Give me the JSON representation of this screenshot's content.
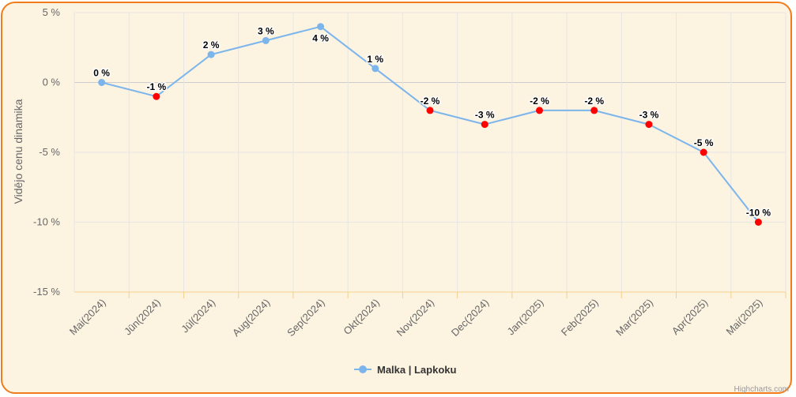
{
  "chart_data": {
    "type": "line",
    "ylabel": "Vidējo cenu dinamika",
    "categories": [
      "Mai(2024)",
      "Jūn(2024)",
      "Jūl(2024)",
      "Aug(2024)",
      "Sep(2024)",
      "Okt(2024)",
      "Nov(2024)",
      "Dec(2024)",
      "Jan(2025)",
      "Feb(2025)",
      "Mar(2025)",
      "Apr(2025)",
      "Mai(2025)"
    ],
    "series": [
      {
        "name": "Malka | Lapkoku",
        "color": "#7cb5ec",
        "values": [
          0,
          -1,
          2,
          3,
          4,
          1,
          -2,
          -3,
          -2,
          -2,
          -3,
          -5,
          -10
        ],
        "data_labels": [
          "0 %",
          "-1 %",
          "2 %",
          "3 %",
          "4 %",
          "1 %",
          "-2 %",
          "-3 %",
          "-2 %",
          "-2 %",
          "-3 %",
          "-5 %",
          "-10 %"
        ]
      }
    ],
    "negative_point_color": "#ff0000",
    "ylim": [
      -15,
      5
    ],
    "yticks": [
      5,
      0,
      -5,
      -10,
      -15
    ],
    "ytick_labels": [
      "5 %",
      "0 %",
      "-5 %",
      "-10 %",
      "-15 %"
    ],
    "grid": true,
    "legend": "bottom-center"
  },
  "credits": "Highcharts.com"
}
